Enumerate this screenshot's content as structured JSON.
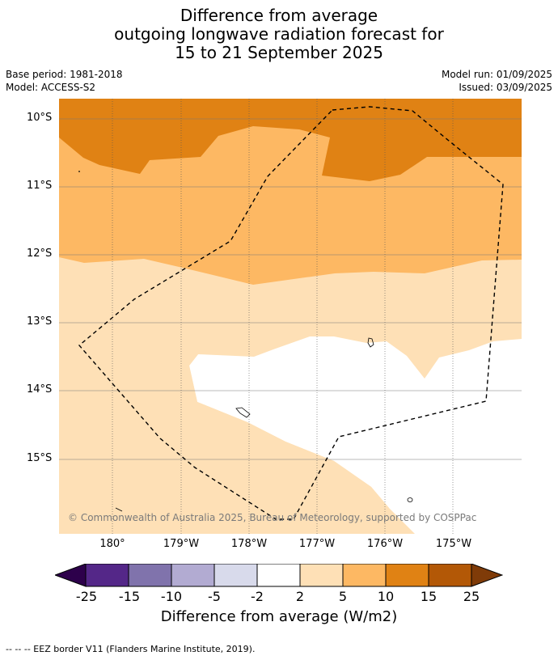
{
  "title": {
    "line1": "Difference from average",
    "line2": "outgoing longwave radiation forecast for",
    "line3": "15 to 21 September 2025"
  },
  "meta": {
    "base_period": "Base period: 1981-2018",
    "model": "Model: ACCESS-S2",
    "model_run": "Model run: 01/09/2025",
    "issued": "Issued: 03/09/2025"
  },
  "map": {
    "lat_labels": [
      "10°S",
      "11°S",
      "12°S",
      "13°S",
      "14°S",
      "15°S"
    ],
    "lon_labels": [
      "180°",
      "179°W",
      "178°W",
      "177°W",
      "176°W",
      "175°W"
    ],
    "copyright": "© Commonwealth of Australia 2025, Bureau of Meteorology, supported by COSPPac",
    "colors": {
      "c10_15": "#e08214",
      "c5_10": "#fdb863",
      "c2_5": "#fee0b6",
      "cn2_2": "#ffffff"
    }
  },
  "colorbar": {
    "ticks": [
      "-25",
      "-15",
      "-10",
      "-5",
      "-2",
      "2",
      "5",
      "10",
      "15",
      "25"
    ],
    "colors": [
      "#2d004b",
      "#542788",
      "#8073ac",
      "#b2abd2",
      "#d8daeb",
      "#ffffff",
      "#fee0b6",
      "#fdb863",
      "#e08214",
      "#b35806",
      "#7f3b08"
    ],
    "label": "Difference from average (W/m2)"
  },
  "footnote": "--  --  -- EEZ border V11 (Flanders Marine Institute, 2019)."
}
